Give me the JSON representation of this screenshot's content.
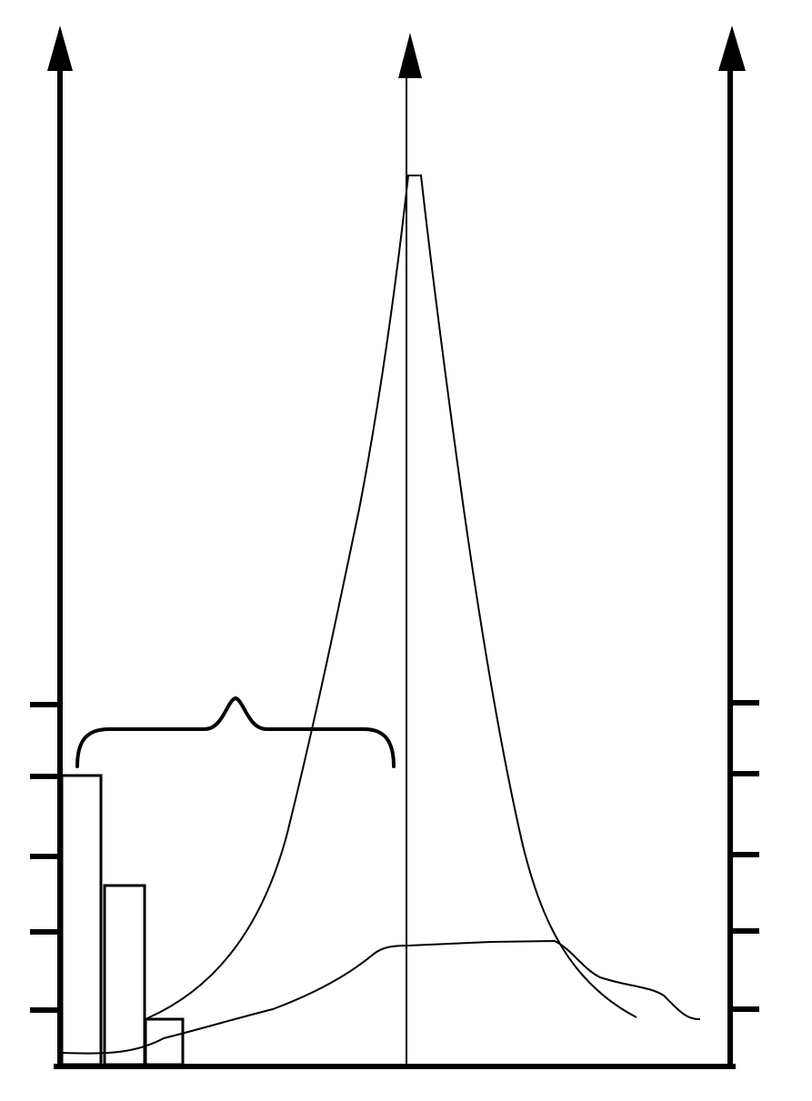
{
  "colors": {
    "background": "#ffffff",
    "ink": "#000000"
  },
  "axes": {
    "left": {
      "arrow": true,
      "tick_count": 5
    },
    "center": {
      "arrow": true
    },
    "right": {
      "arrow": true,
      "tick_count": 5
    },
    "baseline": true
  },
  "histogram": {
    "bar_count": 3,
    "relative_heights": [
      1.0,
      0.62,
      0.15
    ]
  },
  "curves": [
    {
      "kind": "narrow-peak"
    },
    {
      "kind": "broad-flat"
    }
  ],
  "annotations": [
    {
      "kind": "curly-brace"
    }
  ]
}
